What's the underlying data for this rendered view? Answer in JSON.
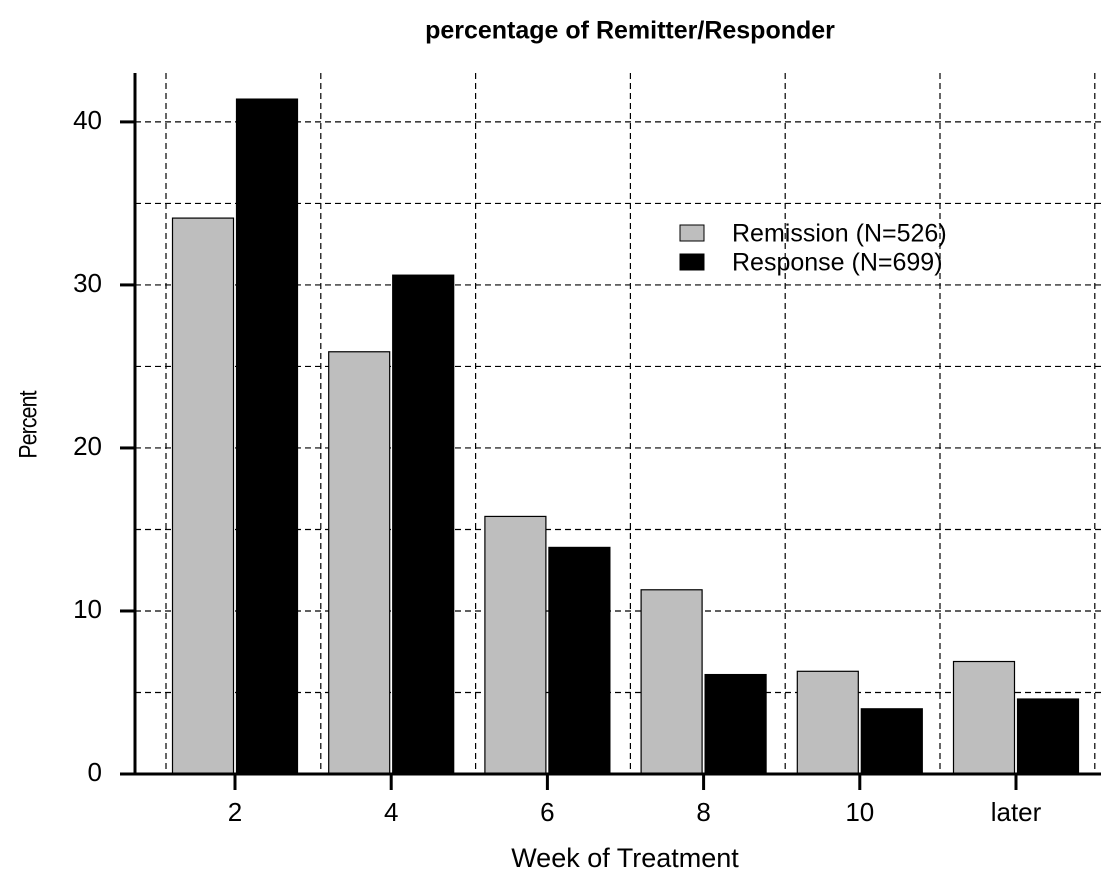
{
  "chart_data": {
    "type": "bar",
    "title": "percentage of Remitter/Responder",
    "x_label": "Week of Treatment",
    "y_label": "Percent",
    "categories": [
      "2",
      "4",
      "6",
      "8",
      "10",
      "later"
    ],
    "series": [
      {
        "name": "Remission (N=526)",
        "color": "#bebebe",
        "values": [
          34.1,
          25.9,
          15.8,
          11.3,
          6.3,
          6.9
        ]
      },
      {
        "name": "Response (N=699)",
        "color": "#000000",
        "values": [
          41.4,
          30.6,
          13.9,
          6.1,
          4.0,
          4.6
        ]
      }
    ],
    "ylim": [
      0,
      43
    ],
    "yticks": [
      0,
      10,
      20,
      30,
      40
    ],
    "grid": true,
    "grid_yticks": [
      5,
      10,
      15,
      20,
      25,
      30,
      35,
      40
    ],
    "legend_position": "upper right"
  }
}
